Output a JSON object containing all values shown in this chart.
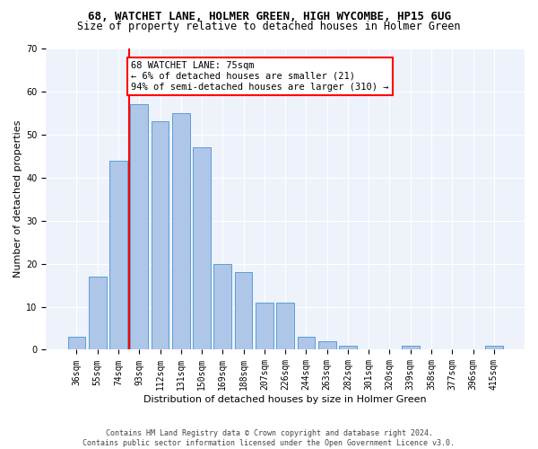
{
  "title": "68, WATCHET LANE, HOLMER GREEN, HIGH WYCOMBE, HP15 6UG",
  "subtitle": "Size of property relative to detached houses in Holmer Green",
  "xlabel": "Distribution of detached houses by size in Holmer Green",
  "ylabel": "Number of detached properties",
  "categories": [
    "36sqm",
    "55sqm",
    "74sqm",
    "93sqm",
    "112sqm",
    "131sqm",
    "150sqm",
    "169sqm",
    "188sqm",
    "207sqm",
    "226sqm",
    "244sqm",
    "263sqm",
    "282sqm",
    "301sqm",
    "320sqm",
    "339sqm",
    "358sqm",
    "377sqm",
    "396sqm",
    "415sqm"
  ],
  "values": [
    3,
    17,
    44,
    57,
    53,
    55,
    47,
    20,
    18,
    11,
    11,
    3,
    2,
    1,
    0,
    0,
    1,
    0,
    0,
    0,
    1
  ],
  "bar_color": "#aec6e8",
  "bar_edge_color": "#5a9fd4",
  "vline_x_index": 2,
  "vline_color": "red",
  "annotation_text": "68 WATCHET LANE: 75sqm\n← 6% of detached houses are smaller (21)\n94% of semi-detached houses are larger (310) →",
  "annotation_box_color": "white",
  "annotation_box_edge": "red",
  "ylim": [
    0,
    70
  ],
  "yticks": [
    0,
    10,
    20,
    30,
    40,
    50,
    60,
    70
  ],
  "footer": "Contains HM Land Registry data © Crown copyright and database right 2024.\nContains public sector information licensed under the Open Government Licence v3.0.",
  "bg_color": "#eef2fb",
  "title_fontsize": 9,
  "subtitle_fontsize": 8.5,
  "axis_label_fontsize": 8,
  "tick_fontsize": 7,
  "footer_fontsize": 6,
  "annotation_fontsize": 7.5
}
